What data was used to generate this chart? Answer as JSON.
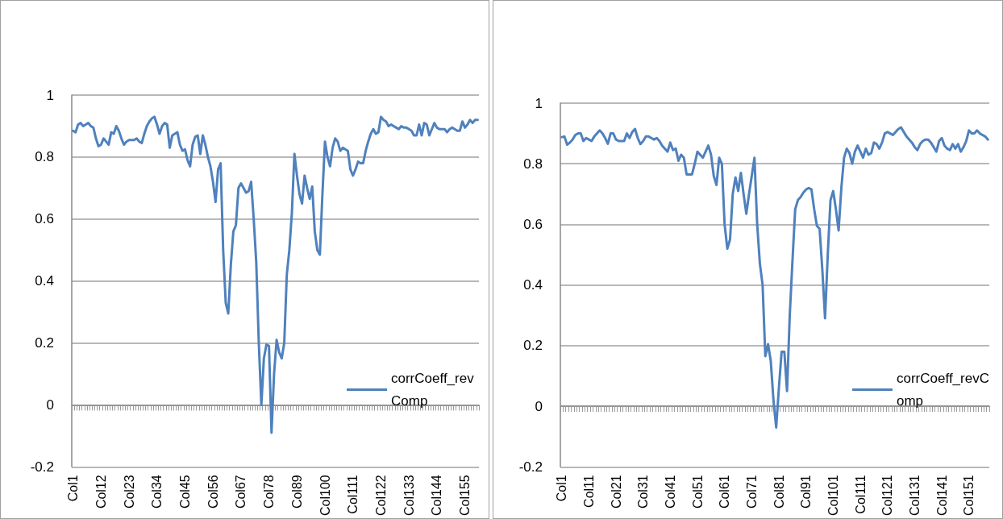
{
  "chart_data": [
    {
      "type": "line",
      "categories": [
        "Col1",
        null,
        null,
        null,
        null,
        null,
        null,
        null,
        null,
        null,
        null,
        "Col12",
        null,
        null,
        null,
        null,
        null,
        null,
        null,
        null,
        null,
        null,
        "Col23",
        null,
        null,
        null,
        null,
        null,
        null,
        null,
        null,
        null,
        null,
        "Col34",
        null,
        null,
        null,
        null,
        null,
        null,
        null,
        null,
        null,
        null,
        "Col45",
        null,
        null,
        null,
        null,
        null,
        null,
        null,
        null,
        null,
        null,
        "Col56",
        null,
        null,
        null,
        null,
        null,
        null,
        null,
        null,
        null,
        null,
        "Col67",
        null,
        null,
        null,
        null,
        null,
        null,
        null,
        null,
        null,
        null,
        "Col78",
        null,
        null,
        null,
        null,
        null,
        null,
        null,
        null,
        null,
        null,
        "Col89",
        null,
        null,
        null,
        null,
        null,
        null,
        null,
        null,
        null,
        null,
        "Col100",
        null,
        null,
        null,
        null,
        null,
        null,
        null,
        null,
        null,
        null,
        "Col111",
        null,
        null,
        null,
        null,
        null,
        null,
        null,
        null,
        null,
        null,
        "Col122",
        null,
        null,
        null,
        null,
        null,
        null,
        null,
        null,
        null,
        null,
        "Col133",
        null,
        null,
        null,
        null,
        null,
        null,
        null,
        null,
        null,
        null,
        "Col144",
        null,
        null,
        null,
        null,
        null,
        null,
        null,
        null,
        null,
        null,
        "Col155",
        null,
        null,
        null,
        null,
        null
      ],
      "series": [
        {
          "name": "corrCoeff_revComp",
          "color": "#4f81bd",
          "values": [
            0.885,
            0.88,
            0.905,
            0.91,
            0.9,
            0.905,
            0.91,
            0.9,
            0.895,
            0.86,
            0.835,
            0.84,
            0.86,
            0.85,
            0.84,
            0.88,
            0.875,
            0.9,
            0.885,
            0.86,
            0.84,
            0.85,
            0.855,
            0.855,
            0.855,
            0.86,
            0.85,
            0.845,
            0.875,
            0.9,
            0.915,
            0.925,
            0.93,
            0.905,
            0.875,
            0.9,
            0.91,
            0.905,
            0.83,
            0.87,
            0.875,
            0.88,
            0.84,
            0.82,
            0.825,
            0.79,
            0.77,
            0.84,
            0.865,
            0.87,
            0.81,
            0.87,
            0.84,
            0.8,
            0.77,
            0.72,
            0.655,
            0.76,
            0.78,
            0.5,
            0.33,
            0.295,
            0.45,
            0.56,
            0.58,
            0.7,
            0.715,
            0.7,
            0.685,
            0.69,
            0.72,
            0.6,
            0.46,
            0.2,
            0,
            0.15,
            0.195,
            0.19,
            -0.09,
            0.1,
            0.21,
            0.17,
            0.15,
            0.2,
            0.42,
            0.5,
            0.62,
            0.81,
            0.74,
            0.68,
            0.65,
            0.74,
            0.7,
            0.665,
            0.705,
            0.56,
            0.5,
            0.485,
            0.68,
            0.85,
            0.8,
            0.77,
            0.83,
            0.86,
            0.85,
            0.82,
            0.83,
            0.825,
            0.82,
            0.76,
            0.74,
            0.76,
            0.785,
            0.78,
            0.78,
            0.82,
            0.85,
            0.875,
            0.89,
            0.875,
            0.88,
            0.93,
            0.92,
            0.915,
            0.9,
            0.905,
            0.9,
            0.895,
            0.89,
            0.9,
            0.895,
            0.895,
            0.89,
            0.885,
            0.87,
            0.87,
            0.905,
            0.87,
            0.91,
            0.905,
            0.87,
            0.89,
            0.91,
            0.895,
            0.89,
            0.89,
            0.89,
            0.88,
            0.89,
            0.895,
            0.89,
            0.885,
            0.885,
            0.915,
            0.895,
            0.905,
            0.92,
            0.91,
            0.92,
            0.92
          ]
        }
      ],
      "ylim": [
        -0.2,
        1
      ],
      "yticks": [
        -0.2,
        0,
        0.2,
        0.4,
        0.6,
        0.8,
        1
      ],
      "grid": "y",
      "legend": "right",
      "marker": "none",
      "line_style": "solid"
    },
    {
      "type": "line",
      "categories": [
        "Col1",
        null,
        null,
        null,
        null,
        null,
        null,
        null,
        null,
        null,
        "Col11",
        null,
        null,
        null,
        null,
        null,
        null,
        null,
        null,
        null,
        "Col21",
        null,
        null,
        null,
        null,
        null,
        null,
        null,
        null,
        null,
        "Col31",
        null,
        null,
        null,
        null,
        null,
        null,
        null,
        null,
        null,
        "Col41",
        null,
        null,
        null,
        null,
        null,
        null,
        null,
        null,
        null,
        "Col51",
        null,
        null,
        null,
        null,
        null,
        null,
        null,
        null,
        null,
        "Col61",
        null,
        null,
        null,
        null,
        null,
        null,
        null,
        null,
        null,
        "Col71",
        null,
        null,
        null,
        null,
        null,
        null,
        null,
        null,
        null,
        "Col81",
        null,
        null,
        null,
        null,
        null,
        null,
        null,
        null,
        null,
        "Col91",
        null,
        null,
        null,
        null,
        null,
        null,
        null,
        null,
        null,
        "Col101",
        null,
        null,
        null,
        null,
        null,
        null,
        null,
        null,
        null,
        "Col111",
        null,
        null,
        null,
        null,
        null,
        null,
        null,
        null,
        null,
        "Col121",
        null,
        null,
        null,
        null,
        null,
        null,
        null,
        null,
        null,
        "Col131",
        null,
        null,
        null,
        null,
        null,
        null,
        null,
        null,
        null,
        "Col141",
        null,
        null,
        null,
        null,
        null,
        null,
        null,
        null,
        null,
        "Col151",
        null,
        null,
        null,
        null,
        null,
        null,
        null
      ],
      "series": [
        {
          "name": "corrCoeff_revComp",
          "color": "#4f81bd",
          "values": [
            0.888,
            0.89,
            0.863,
            0.87,
            0.88,
            0.895,
            0.9,
            0.9,
            0.875,
            0.885,
            0.88,
            0.875,
            0.89,
            0.9,
            0.91,
            0.9,
            0.885,
            0.866,
            0.9,
            0.9,
            0.88,
            0.875,
            0.875,
            0.875,
            0.9,
            0.885,
            0.905,
            0.915,
            0.885,
            0.865,
            0.875,
            0.89,
            0.89,
            0.885,
            0.88,
            0.885,
            0.875,
            0.86,
            0.85,
            0.84,
            0.87,
            0.845,
            0.85,
            0.81,
            0.83,
            0.82,
            0.765,
            0.765,
            0.765,
            0.8,
            0.84,
            0.83,
            0.82,
            0.84,
            0.86,
            0.83,
            0.76,
            0.73,
            0.82,
            0.8,
            0.6,
            0.52,
            0.55,
            0.7,
            0.755,
            0.71,
            0.77,
            0.7,
            0.635,
            0.7,
            0.76,
            0.82,
            0.6,
            0.47,
            0.4,
            0.165,
            0.205,
            0.15,
            0.02,
            -0.07,
            0.06,
            0.18,
            0.18,
            0.05,
            0.3,
            0.48,
            0.65,
            0.68,
            0.69,
            0.705,
            0.715,
            0.72,
            0.715,
            0.65,
            0.595,
            0.585,
            0.45,
            0.29,
            0.5,
            0.68,
            0.71,
            0.65,
            0.58,
            0.72,
            0.82,
            0.85,
            0.835,
            0.8,
            0.84,
            0.86,
            0.84,
            0.82,
            0.85,
            0.83,
            0.835,
            0.87,
            0.865,
            0.85,
            0.87,
            0.9,
            0.905,
            0.9,
            0.895,
            0.905,
            0.915,
            0.92,
            0.905,
            0.89,
            0.88,
            0.87,
            0.855,
            0.845,
            0.865,
            0.875,
            0.88,
            0.88,
            0.87,
            0.855,
            0.84,
            0.875,
            0.885,
            0.86,
            0.85,
            0.845,
            0.865,
            0.85,
            0.865,
            0.84,
            0.855,
            0.875,
            0.91,
            0.9,
            0.9,
            0.91,
            0.9,
            0.895,
            0.89,
            0.88
          ]
        }
      ],
      "ylim": [
        -0.2,
        1
      ],
      "yticks": [
        -0.2,
        0,
        0.2,
        0.4,
        0.6,
        0.8,
        1
      ],
      "grid": "y",
      "legend": "right",
      "marker": "none",
      "line_style": "solid"
    }
  ]
}
